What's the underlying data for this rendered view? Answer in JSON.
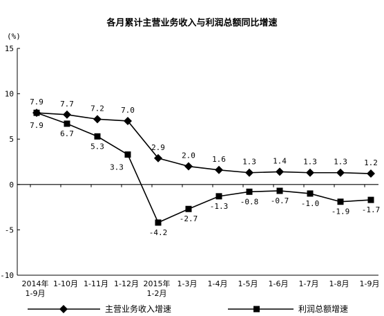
{
  "chart_data": {
    "type": "line",
    "title": "各月累计主营业务收入与利润总额同比增速",
    "ylabel": "(%)",
    "ylim": [
      -10,
      15
    ],
    "yticks": [
      "15",
      "10",
      "5",
      "0",
      "-5",
      "-10"
    ],
    "ytick_values": [
      15,
      10,
      5,
      0,
      -5,
      -10
    ],
    "categories": [
      [
        "2014年",
        "1-9月"
      ],
      [
        "1-10月"
      ],
      [
        "1-11月"
      ],
      [
        "1-12月"
      ],
      [
        "2015年",
        "1-2月"
      ],
      [
        "1-3月"
      ],
      [
        "1-4月"
      ],
      [
        "1-5月"
      ],
      [
        "1-6月"
      ],
      [
        "1-7月"
      ],
      [
        "1-8月"
      ],
      [
        "1-9月"
      ]
    ],
    "series": [
      {
        "name": "主营业务收入增速",
        "marker": "diamond",
        "values": [
          7.9,
          7.7,
          7.2,
          7.0,
          2.9,
          2.0,
          1.6,
          1.3,
          1.4,
          1.3,
          1.3,
          1.2
        ],
        "labels": [
          "7.9",
          "7.7",
          "7.2",
          "7.0",
          "2.9",
          "2.0",
          "1.6",
          "1.3",
          "1.4",
          "1.3",
          "1.3",
          "1.2"
        ]
      },
      {
        "name": "利润总额增速",
        "marker": "square",
        "values": [
          7.9,
          6.7,
          5.3,
          3.3,
          -4.2,
          -2.7,
          -1.3,
          -0.8,
          -0.7,
          -1.0,
          -1.9,
          -1.7
        ],
        "labels": [
          "7.9",
          "6.7",
          "5.3",
          "3.3",
          "-4.2",
          "-2.7",
          "-1.3",
          "-0.8",
          "-0.7",
          "-1.0",
          "-1.9",
          "-1.7"
        ]
      }
    ],
    "grid": false,
    "legend": "bottom"
  }
}
